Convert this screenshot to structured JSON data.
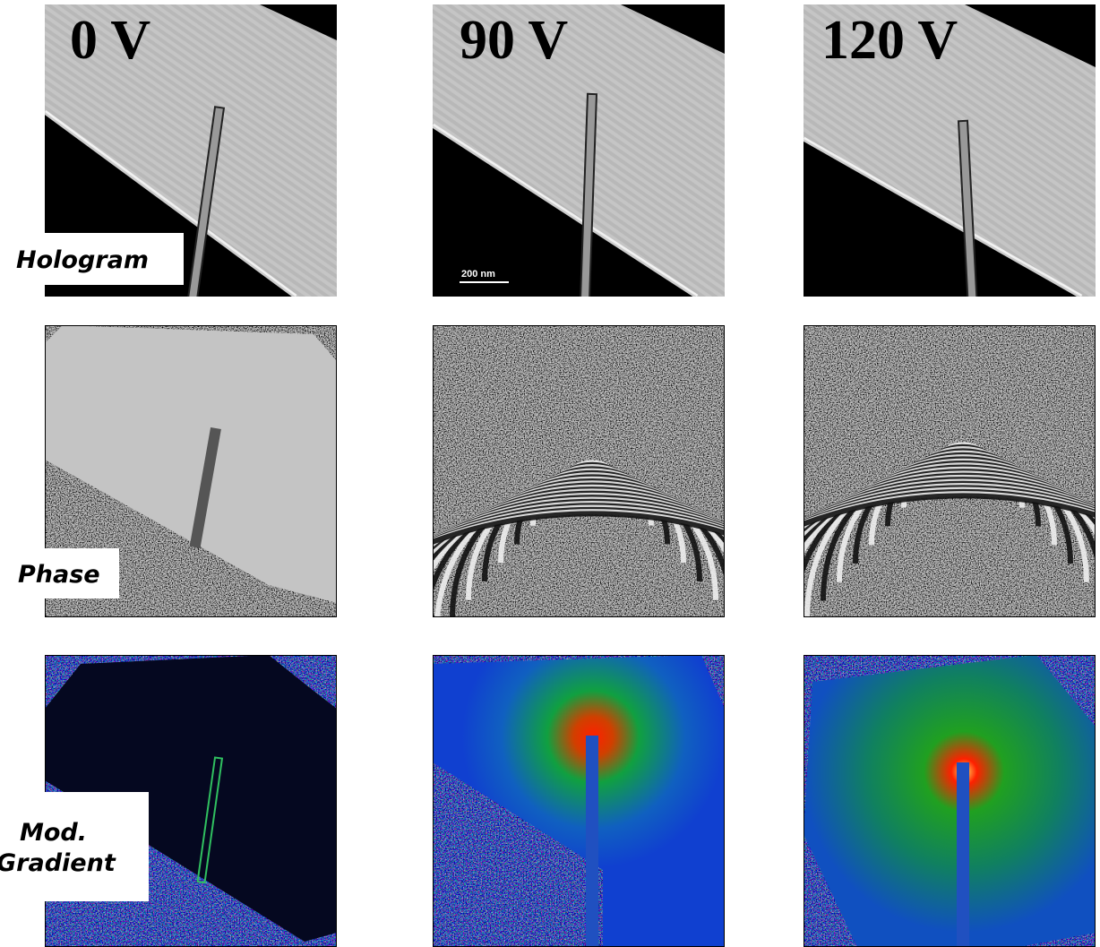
{
  "columns": [
    {
      "label": "0 V"
    },
    {
      "label": "90 V"
    },
    {
      "label": "120 V"
    }
  ],
  "rows": [
    {
      "label": [
        "Hologram"
      ]
    },
    {
      "label": [
        "Phase"
      ]
    },
    {
      "label": [
        "Mod.",
        "Gradient"
      ]
    }
  ],
  "scale_bar": "200 nm"
}
